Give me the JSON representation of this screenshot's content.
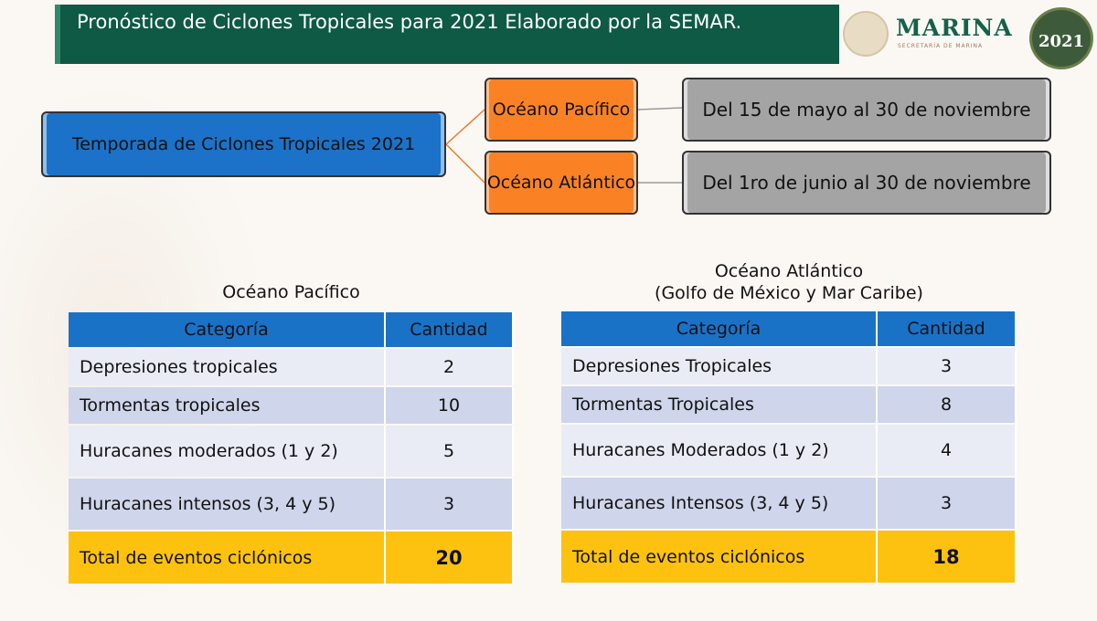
{
  "header": {
    "title": "Pronóstico de Ciclones Tropicales para 2021 Elaborado por la SEMAR."
  },
  "logo": {
    "name": "MARINA",
    "subtitle": "SECRETARÍA DE MARINA",
    "emblem": "México 2021"
  },
  "diagram": {
    "root": "Temporada de Ciclones Tropicales 2021",
    "branches": [
      {
        "ocean": "Océano Pacífico",
        "season": "Del 15 de mayo al 30 de noviembre"
      },
      {
        "ocean": "Océano Atlántico",
        "season": "Del 1ro de junio al 30 de noviembre"
      }
    ]
  },
  "pacific": {
    "title": "Océano Pacífico",
    "headers": [
      "Categoría",
      "Cantidad"
    ],
    "rows": [
      [
        "Depresiones tropicales",
        "2"
      ],
      [
        "Tormentas tropicales",
        "10"
      ],
      [
        "Huracanes moderados (1 y 2)",
        "5"
      ],
      [
        "Huracanes intensos (3, 4 y 5)",
        "3"
      ]
    ],
    "total": [
      "Total de eventos ciclónicos",
      "20"
    ]
  },
  "atlantic": {
    "title": "Océano Atlántico",
    "subtitle": "(Golfo de México y Mar Caribe)",
    "headers": [
      "Categoría",
      "Cantidad"
    ],
    "rows": [
      [
        "Depresiones Tropicales",
        "3"
      ],
      [
        "Tormentas Tropicales",
        "8"
      ],
      [
        "Huracanes Moderados (1 y 2)",
        "4"
      ],
      [
        "Huracanes Intensos (3, 4 y 5)",
        "3"
      ]
    ],
    "total": [
      "Total de eventos ciclónicos",
      "18"
    ]
  }
}
